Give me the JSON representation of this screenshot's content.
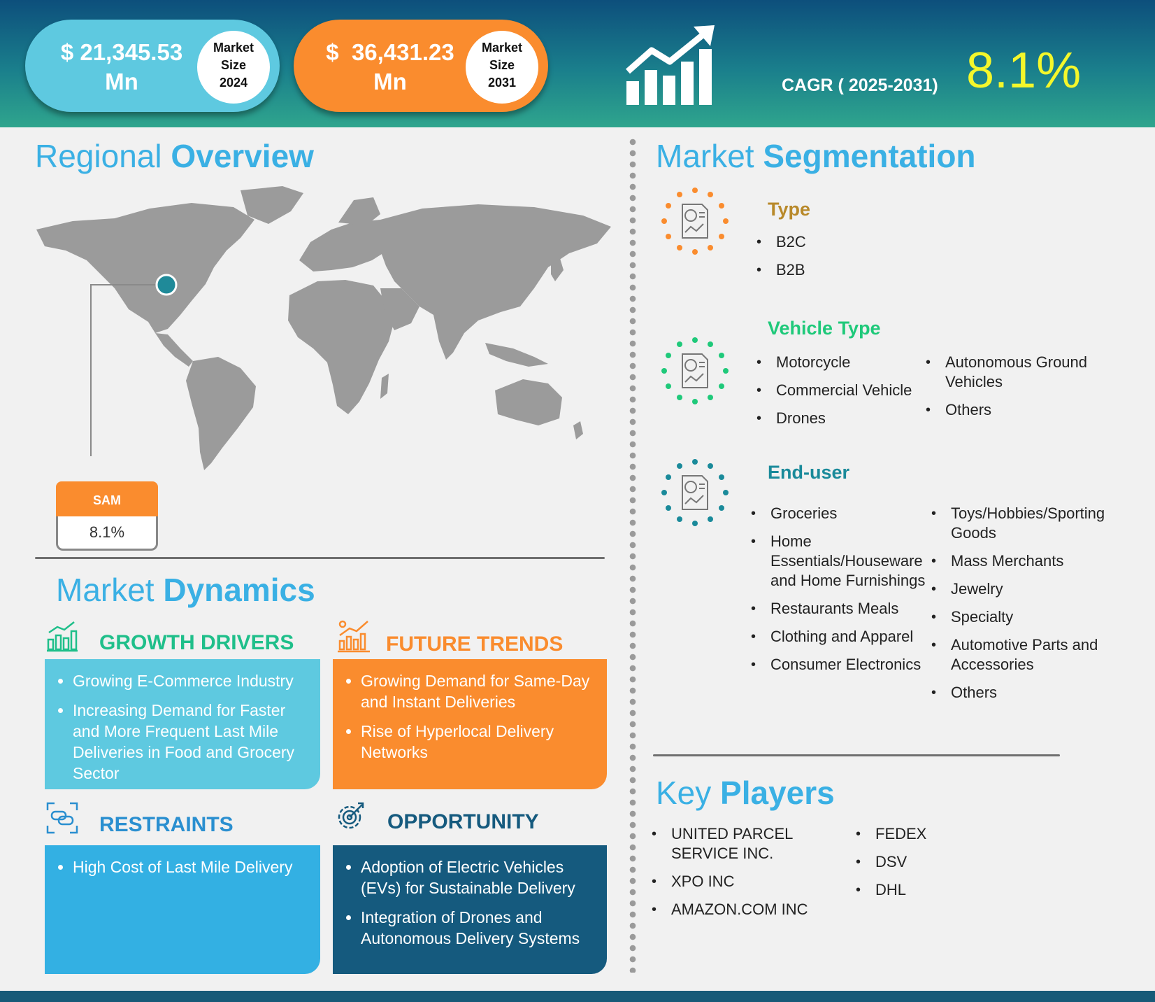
{
  "header": {
    "size_2024": {
      "currency": "$",
      "value": "21,345.53",
      "unit": "Mn",
      "badge_l1": "Market",
      "badge_l2": "Size",
      "badge_year": "2024"
    },
    "size_2031": {
      "currency": "$",
      "value": "36,431.23",
      "unit": "Mn",
      "badge_l1": "Market",
      "badge_l2": "Size",
      "badge_year": "2031"
    },
    "cagr_label": "CAGR ( 2025-2031)",
    "cagr_value": "8.1%",
    "colors": {
      "pill_left": "#5ec9e0",
      "pill_right": "#fa8c2e",
      "cagr": "#f4f72b"
    }
  },
  "regional": {
    "title_light": "Regional",
    "title_bold": "Overview",
    "sam_label": "SAM",
    "sam_value": "8.1%"
  },
  "dynamics": {
    "title_light": "Market",
    "title_bold": "Dynamics",
    "growth": {
      "title": "GROWTH DRIVERS",
      "icon": "growth-chart-icon",
      "items": [
        "Growing E-Commerce Industry",
        "Increasing Demand for Faster and More Frequent Last Mile Deliveries in Food and Grocery Sector"
      ]
    },
    "trends": {
      "title": "FUTURE TRENDS",
      "icon": "trend-chart-icon",
      "items": [
        "Growing Demand for Same-Day and Instant Deliveries",
        "Rise of Hyperlocal Delivery Networks"
      ]
    },
    "restraints": {
      "title": "RESTRAINTS",
      "icon": "chain-link-icon",
      "items": [
        "High Cost of Last Mile Delivery"
      ]
    },
    "opportunity": {
      "title": "OPPORTUNITY",
      "icon": "gear-target-icon",
      "items": [
        "Adoption of Electric Vehicles (EVs) for Sustainable Delivery",
        "Integration of Drones and Autonomous Delivery Systems"
      ]
    }
  },
  "segmentation": {
    "title_light": "Market",
    "title_bold": "Segmentation",
    "type": {
      "title": "Type",
      "items": [
        "B2C",
        "B2B"
      ]
    },
    "vehicle": {
      "title": "Vehicle Type",
      "col1": [
        "Motorcycle",
        "Commercial Vehicle",
        "Drones"
      ],
      "col2": [
        "Autonomous Ground Vehicles",
        "Others"
      ]
    },
    "enduser": {
      "title": "End-user",
      "col1": [
        "Groceries",
        "Home Essentials/Houseware and Home Furnishings",
        "Restaurants Meals",
        "Clothing and Apparel",
        "Consumer Electronics"
      ],
      "col2": [
        "Toys/Hobbies/Sporting Goods",
        "Mass Merchants",
        "Jewelry",
        "Specialty",
        "Automotive Parts and Accessories",
        "Others"
      ]
    }
  },
  "players": {
    "title_light": "Key",
    "title_bold": "Players",
    "col1": [
      "UNITED PARCEL SERVICE INC.",
      "XPO INC",
      "AMAZON.COM INC"
    ],
    "col2": [
      "FEDEX",
      "DSV",
      "DHL"
    ]
  }
}
